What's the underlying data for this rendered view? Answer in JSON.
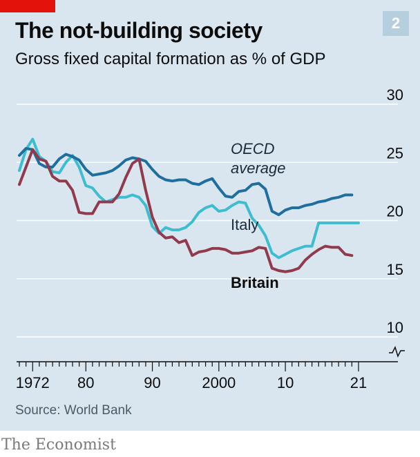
{
  "header": {
    "title": "The not-building society",
    "subtitle": "Gross fixed capital formation as % of GDP",
    "chart_number": "2"
  },
  "footer": {
    "source": "Source: World Bank",
    "brand": "The Economist"
  },
  "colors": {
    "background": "#d9e6ef",
    "accent_red": "#e3120b",
    "oecd": "#1f6ea0",
    "italy": "#3ebdd1",
    "britain": "#913a4e"
  },
  "chart_data": {
    "type": "line",
    "title": "The not-building society",
    "subtitle": "Gross fixed capital formation as % of GDP",
    "xlabel": "",
    "ylabel": "",
    "x_ticks": [
      "1972",
      "80",
      "90",
      "2000",
      "10",
      "21"
    ],
    "x_tick_years": [
      1972,
      1980,
      1990,
      2000,
      2010,
      2021
    ],
    "y_ticks": [
      "10",
      "15",
      "20",
      "25",
      "30"
    ],
    "y_tick_values": [
      10,
      15,
      20,
      25,
      30
    ],
    "ylim": [
      10,
      30
    ],
    "xlim": [
      1970,
      2021
    ],
    "y_axis_break": true,
    "grid": true,
    "series": [
      {
        "name": "OECD average",
        "label_lines": [
          "OECD",
          "average"
        ],
        "color": "#1f6ea0",
        "x": [
          1970,
          1971,
          1972,
          1973,
          1974,
          1975,
          1976,
          1977,
          1978,
          1979,
          1980,
          1981,
          1982,
          1983,
          1984,
          1985,
          1986,
          1987,
          1988,
          1989,
          1990,
          1991,
          1992,
          1993,
          1994,
          1995,
          1996,
          1997,
          1998,
          1999,
          2000,
          2001,
          2002,
          2003,
          2004,
          2005,
          2006,
          2007,
          2008,
          2009,
          2010,
          2011,
          2012,
          2013,
          2014,
          2015,
          2016,
          2017,
          2018,
          2019,
          2020
        ],
        "y": [
          25.6,
          26.2,
          26.1,
          24.9,
          24.6,
          24.6,
          25.3,
          25.7,
          25.5,
          25.2,
          24.4,
          23.9,
          24.0,
          24.1,
          24.3,
          24.7,
          25.2,
          25.4,
          25.3,
          25.1,
          24.4,
          23.8,
          23.5,
          23.4,
          23.5,
          23.5,
          23.2,
          23.1,
          23.4,
          23.6,
          22.8,
          22.1,
          22.0,
          22.5,
          22.6,
          23.1,
          23.2,
          22.7,
          20.8,
          20.5,
          20.9,
          21.1,
          21.1,
          21.3,
          21.4,
          21.6,
          21.7,
          21.9,
          22.0,
          22.2,
          22.2
        ]
      },
      {
        "name": "Italy",
        "label_lines": [
          "Italy"
        ],
        "color": "#3ebdd1",
        "x": [
          1970,
          1971,
          1972,
          1973,
          1974,
          1975,
          1976,
          1977,
          1978,
          1979,
          1980,
          1981,
          1982,
          1983,
          1984,
          1985,
          1986,
          1987,
          1988,
          1989,
          1990,
          1991,
          1992,
          1993,
          1994,
          1995,
          1996,
          1997,
          1998,
          1999,
          2000,
          2001,
          2002,
          2003,
          2004,
          2005,
          2006,
          2007,
          2008,
          2009,
          2010,
          2011,
          2012,
          2013,
          2014,
          2015,
          2016,
          2017,
          2018,
          2019,
          2020,
          2021
        ],
        "y": [
          24.3,
          26.1,
          27.0,
          25.5,
          25.1,
          24.2,
          24.1,
          25.0,
          25.6,
          24.6,
          23.0,
          22.8,
          22.1,
          21.6,
          21.8,
          22.0,
          22.0,
          22.2,
          22.0,
          21.3,
          19.5,
          18.9,
          19.4,
          19.2,
          19.2,
          19.4,
          19.9,
          20.7,
          21.1,
          21.3,
          20.8,
          20.9,
          21.3,
          21.6,
          21.5,
          20.2,
          19.6,
          18.7,
          17.2,
          16.8,
          17.1,
          17.4,
          17.6,
          17.8,
          17.8,
          19.8,
          19.8,
          19.8,
          19.8,
          19.8,
          19.8,
          19.8
        ]
      },
      {
        "name": "Britain",
        "label_lines": [
          "Britain"
        ],
        "color": "#913a4e",
        "x": [
          1970,
          1971,
          1972,
          1973,
          1974,
          1975,
          1976,
          1977,
          1978,
          1979,
          1980,
          1981,
          1982,
          1983,
          1984,
          1985,
          1986,
          1987,
          1988,
          1989,
          1990,
          1991,
          1992,
          1993,
          1994,
          1995,
          1996,
          1997,
          1998,
          1999,
          2000,
          2001,
          2002,
          2003,
          2004,
          2005,
          2006,
          2007,
          2008,
          2009,
          2010,
          2011,
          2012,
          2013,
          2014,
          2015,
          2016,
          2017,
          2018,
          2019,
          2020
        ],
        "y": [
          23.1,
          24.6,
          26.1,
          25.3,
          25.1,
          23.8,
          23.4,
          23.4,
          22.6,
          20.7,
          20.6,
          20.6,
          21.6,
          21.6,
          21.6,
          22.3,
          23.7,
          24.9,
          25.3,
          22.6,
          20.3,
          19.0,
          18.5,
          18.6,
          18.1,
          18.3,
          17.0,
          17.3,
          17.4,
          17.6,
          17.6,
          17.5,
          17.2,
          17.2,
          17.3,
          17.4,
          17.7,
          17.6,
          15.9,
          15.7,
          15.6,
          15.7,
          15.9,
          16.6,
          17.1,
          17.5,
          17.8,
          17.7,
          17.7,
          17.1,
          17.0
        ]
      }
    ]
  }
}
